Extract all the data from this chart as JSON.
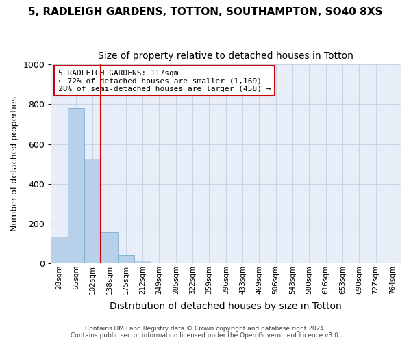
{
  "title1": "5, RADLEIGH GARDENS, TOTTON, SOUTHAMPTON, SO40 8XS",
  "title2": "Size of property relative to detached houses in Totton",
  "xlabel": "Distribution of detached houses by size in Totton",
  "ylabel": "Number of detached properties",
  "bar_labels": [
    "28sqm",
    "65sqm",
    "102sqm",
    "138sqm",
    "175sqm",
    "212sqm",
    "249sqm",
    "285sqm",
    "322sqm",
    "359sqm",
    "396sqm",
    "433sqm",
    "469sqm",
    "506sqm",
    "543sqm",
    "580sqm",
    "616sqm",
    "653sqm",
    "690sqm",
    "727sqm",
    "764sqm"
  ],
  "bar_values": [
    133,
    780,
    525,
    158,
    40,
    12,
    0,
    0,
    0,
    0,
    0,
    0,
    0,
    0,
    0,
    0,
    0,
    0,
    0,
    0,
    0
  ],
  "bar_color": "#b8d0ea",
  "bar_edge_color": "#7aafd4",
  "grid_color": "#c8d4e8",
  "background_color": "#e8eef8",
  "vline_color": "#cc0000",
  "annotation_text": "5 RADLEIGH GARDENS: 117sqm\n← 72% of detached houses are smaller (1,169)\n28% of semi-detached houses are larger (458) →",
  "annotation_box_color": "#ffffff",
  "annotation_box_edge": "#cc0000",
  "footer_text": "Contains HM Land Registry data © Crown copyright and database right 2024.\nContains public sector information licensed under the Open Government Licence v3.0.",
  "ylim": [
    0,
    1000
  ],
  "title1_fontsize": 11,
  "title2_fontsize": 10,
  "ylabel_fontsize": 9,
  "xlabel_fontsize": 10
}
